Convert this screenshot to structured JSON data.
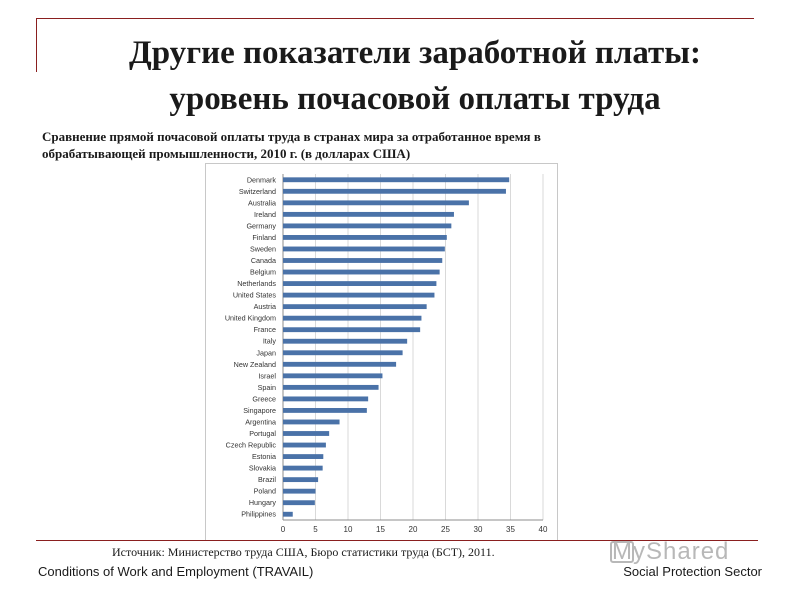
{
  "slide": {
    "title_line1": "Другие показатели заработной платы:",
    "title_line2": "уровень почасовой оплаты труда",
    "subtitle_line1": "Сравнение прямой почасовой оплаты труда в странах мира за отработанное время в",
    "subtitle_line2": "обрабатывающей промышленности, 2010 г. (в долларах США)",
    "source": "Источник: Министерство труда США, Бюро статистики труда (БСТ), 2011.",
    "footer_left": "Conditions of Work and Employment (TRAVAIL)",
    "footer_right": "Social Protection Sector",
    "watermark": "MyShared"
  },
  "chart_data": {
    "type": "bar",
    "orientation": "horizontal",
    "categories": [
      "Denmark",
      "Switzerland",
      "Australia",
      "Ireland",
      "Germany",
      "Finland",
      "Sweden",
      "Canada",
      "Belgium",
      "Netherlands",
      "United States",
      "Austria",
      "United Kingdom",
      "France",
      "Italy",
      "Japan",
      "New Zealand",
      "Israel",
      "Spain",
      "Greece",
      "Singapore",
      "Argentina",
      "Portugal",
      "Czech Republic",
      "Estonia",
      "Slovakia",
      "Brazil",
      "Poland",
      "Hungary",
      "Philippines"
    ],
    "values": [
      34.8,
      34.3,
      28.6,
      26.3,
      25.9,
      25.2,
      24.9,
      24.5,
      24.1,
      23.6,
      23.3,
      22.1,
      21.3,
      21.1,
      19.1,
      18.4,
      17.4,
      15.3,
      14.7,
      13.1,
      12.9,
      8.7,
      7.1,
      6.6,
      6.2,
      6.1,
      5.4,
      5.0,
      4.9,
      1.5
    ],
    "xticks": [
      0,
      5,
      10,
      15,
      20,
      25,
      30,
      35,
      40
    ],
    "xlim": [
      0,
      40
    ],
    "bar_color": "#4a72a8",
    "grid": true
  }
}
